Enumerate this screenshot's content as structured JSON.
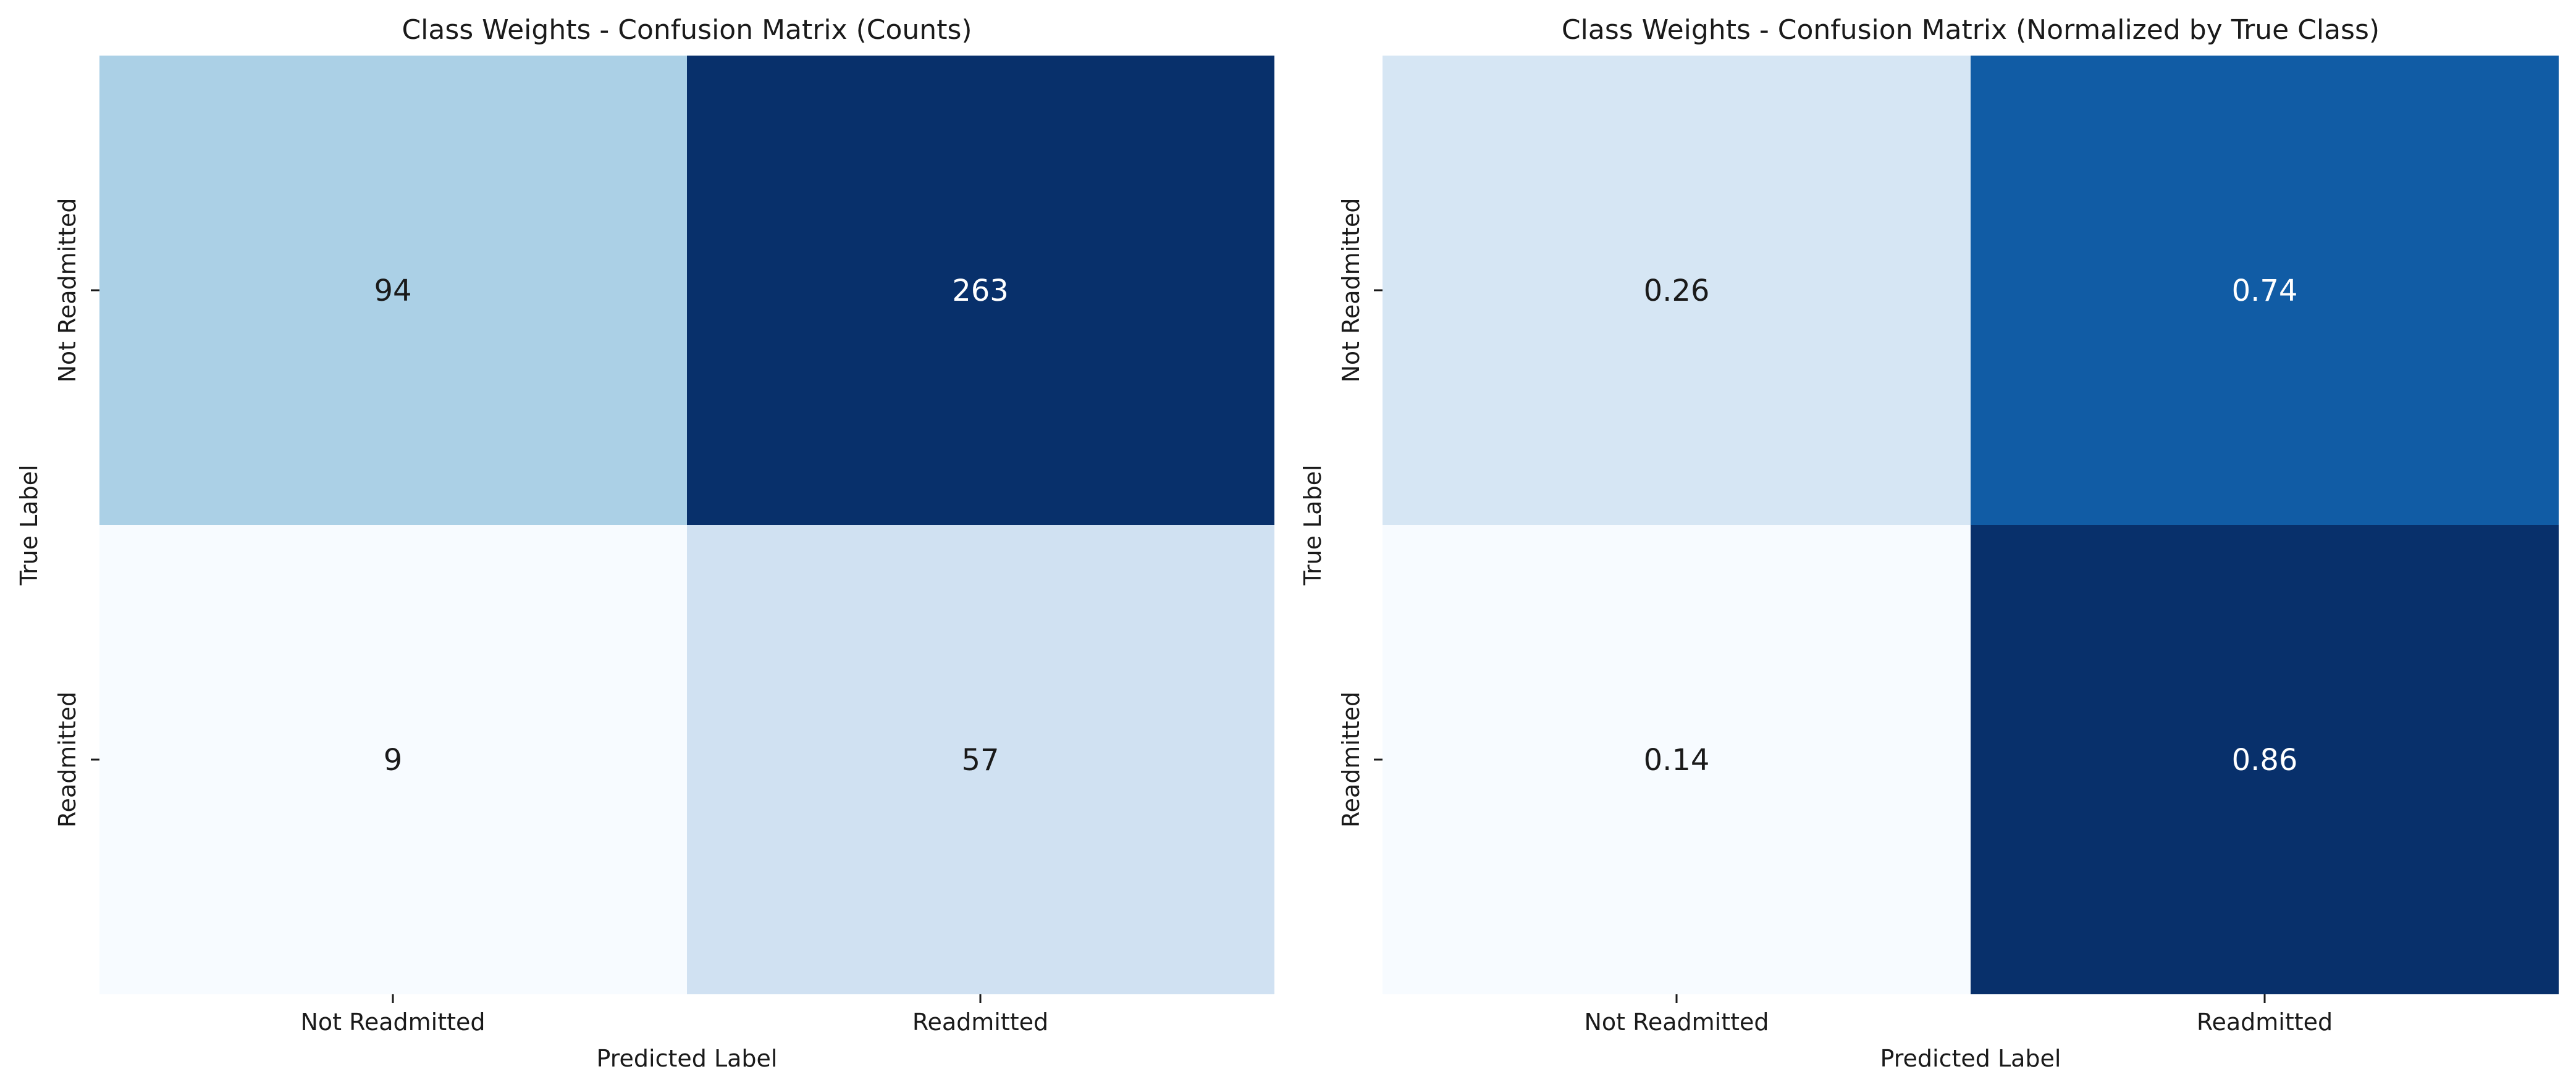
{
  "chart_data": [
    {
      "type": "heatmap",
      "title": "Class Weights - Confusion Matrix (Counts)",
      "xlabel": "Predicted Label",
      "ylabel": "True Label",
      "x_categories": [
        "Not Readmitted",
        "Readmitted"
      ],
      "y_categories": [
        "Not Readmitted",
        "Readmitted"
      ],
      "values": [
        [
          94,
          263
        ],
        [
          9,
          57
        ]
      ],
      "cell_labels": [
        [
          "94",
          "263"
        ],
        [
          "9",
          "57"
        ]
      ],
      "colormap": "Blues",
      "colorbar": false,
      "colors": [
        [
          "#abd0e6",
          "#08306b"
        ],
        [
          "#f7fbff",
          "#d0e1f2"
        ]
      ],
      "text_colors": [
        [
          "#1a1a1a",
          "#ffffff"
        ],
        [
          "#1a1a1a",
          "#1a1a1a"
        ]
      ]
    },
    {
      "type": "heatmap",
      "title": "Class Weights - Confusion Matrix (Normalized by True Class)",
      "xlabel": "Predicted Label",
      "ylabel": "True Label",
      "x_categories": [
        "Not Readmitted",
        "Readmitted"
      ],
      "y_categories": [
        "Not Readmitted",
        "Readmitted"
      ],
      "values": [
        [
          0.26,
          0.74
        ],
        [
          0.14,
          0.86
        ]
      ],
      "cell_labels": [
        [
          "0.26",
          "0.74"
        ],
        [
          "0.14",
          "0.86"
        ]
      ],
      "colormap": "Blues",
      "colorbar": false,
      "colors": [
        [
          "#d6e6f4",
          "#115ca5"
        ],
        [
          "#f7fbff",
          "#08306b"
        ]
      ],
      "text_colors": [
        [
          "#1a1a1a",
          "#ffffff"
        ],
        [
          "#1a1a1a",
          "#ffffff"
        ]
      ]
    }
  ]
}
